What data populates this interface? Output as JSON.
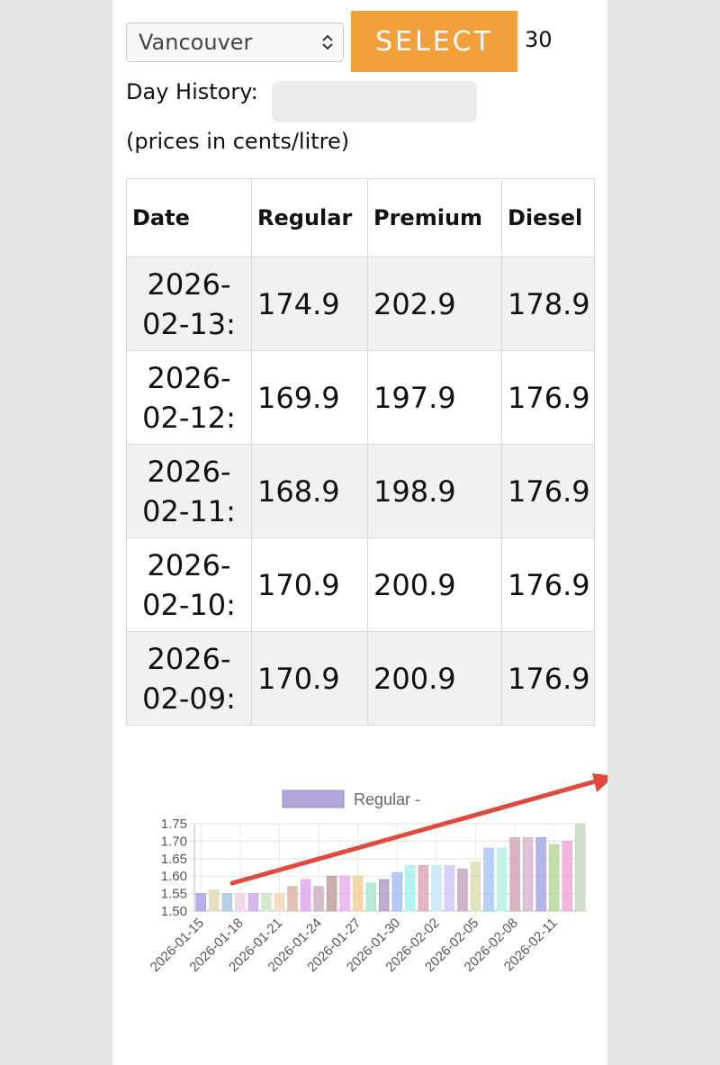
{
  "controls": {
    "city_value": "Vancouver",
    "select_label": "SELECT",
    "days_value": "30",
    "history_label": "Day History:",
    "units_note": "(prices in cents/litre)"
  },
  "table": {
    "headers": [
      "Date",
      "Regular",
      "Premium",
      "Diesel"
    ],
    "rows": [
      {
        "date_a": "2026-",
        "date_b": "02-13:",
        "regular": "174.9",
        "premium": "202.9",
        "diesel": "178.9"
      },
      {
        "date_a": "2026-",
        "date_b": "02-12:",
        "regular": "169.9",
        "premium": "197.9",
        "diesel": "176.9"
      },
      {
        "date_a": "2026-",
        "date_b": "02-11:",
        "regular": "168.9",
        "premium": "198.9",
        "diesel": "176.9"
      },
      {
        "date_a": "2026-",
        "date_b": "02-10:",
        "regular": "170.9",
        "premium": "200.9",
        "diesel": "176.9"
      },
      {
        "date_a": "2026-",
        "date_b": "02-09:",
        "regular": "170.9",
        "premium": "200.9",
        "diesel": "176.9"
      }
    ]
  },
  "chart_data": {
    "type": "bar",
    "legend": "Regular -",
    "legend_color": "#b3a6dc",
    "ylim": [
      1.5,
      1.75
    ],
    "y_ticks": [
      "1.75",
      "1.70",
      "1.65",
      "1.60",
      "1.55",
      "1.50"
    ],
    "x_tick_labels": [
      "2026-01-15",
      "2026-01-18",
      "2026-01-21",
      "2026-01-24",
      "2026-01-27",
      "2026-01-30",
      "2026-02-02",
      "2026-02-05",
      "2026-02-08",
      "2026-02-11"
    ],
    "categories": [
      "2026-01-15",
      "2026-01-16",
      "2026-01-17",
      "2026-01-18",
      "2026-01-19",
      "2026-01-20",
      "2026-01-21",
      "2026-01-22",
      "2026-01-23",
      "2026-01-24",
      "2026-01-25",
      "2026-01-26",
      "2026-01-27",
      "2026-01-28",
      "2026-01-29",
      "2026-01-30",
      "2026-01-31",
      "2026-02-01",
      "2026-02-02",
      "2026-02-03",
      "2026-02-04",
      "2026-02-05",
      "2026-02-06",
      "2026-02-07",
      "2026-02-08",
      "2026-02-09",
      "2026-02-10",
      "2026-02-11",
      "2026-02-12",
      "2026-02-13"
    ],
    "values": [
      1.55,
      1.56,
      1.55,
      1.55,
      1.55,
      1.55,
      1.55,
      1.57,
      1.59,
      1.57,
      1.6,
      1.6,
      1.6,
      1.58,
      1.59,
      1.61,
      1.63,
      1.63,
      1.63,
      1.63,
      1.62,
      1.64,
      1.68,
      1.68,
      1.71,
      1.71,
      1.71,
      1.69,
      1.7,
      1.75
    ],
    "colors": [
      "#a9a3e4",
      "#ddd9b8",
      "#a9c7e4",
      "#f2d0e2",
      "#d0a9e4",
      "#cfe5c4",
      "#f2d9b8",
      "#d9b8a9",
      "#e0a9f0",
      "#d0b0c4",
      "#c4a0a0",
      "#e8b0f0",
      "#f0d0a0",
      "#a8e8d0",
      "#b0a0c8",
      "#a8c0f0",
      "#a8f0f0",
      "#e0a8b8",
      "#c8e8f8",
      "#d0c8f8",
      "#c8a8c0",
      "#d8e0b0",
      "#a8c8f8",
      "#b8f0e8",
      "#d0a8b8",
      "#d8b8d0",
      "#a8a8e8",
      "#b8d8a0",
      "#f0a8d8",
      "#c8d8c0"
    ]
  },
  "annotation": {
    "arrow_color": "#e04a3c"
  }
}
